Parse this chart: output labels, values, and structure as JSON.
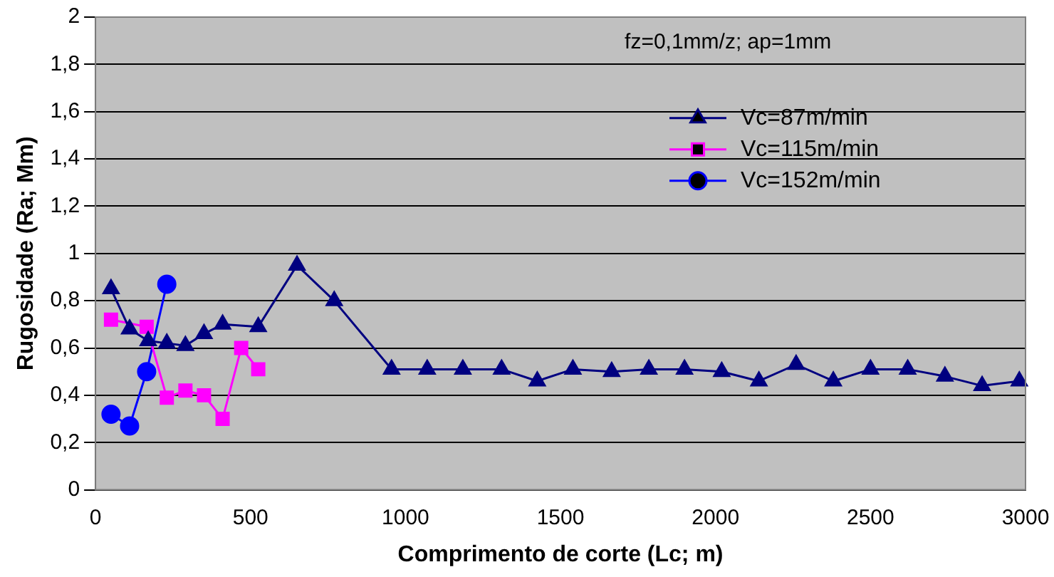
{
  "chart_data": {
    "type": "line",
    "title": "fz=0,1mm/z; ap=1mm",
    "xlabel": "Comprimento de corte (Lc; m)",
    "ylabel": "Rugosidade (Ra; Mm)",
    "series": [
      {
        "name": "Vc=87m/min",
        "color": "#000080",
        "marker": "triangle",
        "x": [
          50,
          110,
          170,
          230,
          290,
          350,
          410,
          525,
          650,
          770,
          955,
          1070,
          1185,
          1310,
          1425,
          1540,
          1665,
          1785,
          1900,
          2020,
          2140,
          2260,
          2380,
          2500,
          2620,
          2740,
          2860,
          2980
        ],
        "values": [
          0.85,
          0.68,
          0.63,
          0.62,
          0.61,
          0.66,
          0.7,
          0.69,
          0.95,
          0.8,
          0.51,
          0.51,
          0.51,
          0.51,
          0.46,
          0.51,
          0.5,
          0.51,
          0.51,
          0.5,
          0.46,
          0.53,
          0.46,
          0.51,
          0.51,
          0.48,
          0.44,
          0.46
        ]
      },
      {
        "name": "Vc=115m/min",
        "color": "#ff00ff",
        "marker": "square",
        "x": [
          50,
          165,
          230,
          290,
          350,
          410,
          470,
          525
        ],
        "values": [
          0.72,
          0.69,
          0.39,
          0.42,
          0.4,
          0.3,
          0.6,
          0.51
        ]
      },
      {
        "name": "Vc=152m/min",
        "color": "#0000ff",
        "marker": "circle",
        "x": [
          50,
          110,
          165,
          230
        ],
        "values": [
          0.32,
          0.27,
          0.5,
          0.87
        ]
      }
    ],
    "xlim": [
      0,
      3000
    ],
    "xticks": [
      0,
      500,
      1000,
      1500,
      2000,
      2500,
      3000
    ],
    "ylim": [
      0,
      2
    ],
    "yticks": [
      0,
      {
        "value": 0.2,
        "label": "0,2"
      },
      {
        "value": 0.4,
        "label": "0,4"
      },
      {
        "value": 0.6,
        "label": "0,6"
      },
      {
        "value": 0.8,
        "label": "0,8"
      },
      1,
      {
        "value": 1.2,
        "label": "1,2"
      },
      {
        "value": 1.4,
        "label": "1,4"
      },
      {
        "value": 1.6,
        "label": "1,6"
      },
      {
        "value": 1.8,
        "label": "1,8"
      },
      2
    ],
    "grid": "y",
    "legend": "right",
    "line_style": "solid"
  }
}
